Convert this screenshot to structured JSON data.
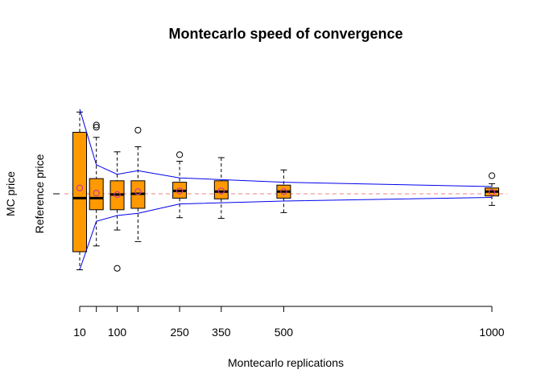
{
  "chart_data": {
    "type": "boxplot",
    "title": "Montecarlo speed of convergence",
    "xlabel": "Montecarlo replications",
    "ylabel_outer": "MC price",
    "ylabel_inner": "Reference price",
    "x_tick_labels": [
      "10",
      "100",
      "250",
      "350",
      "500",
      "1000"
    ],
    "reference_value": 0,
    "ylim": [
      -1.0,
      1.1
    ],
    "xlim": [
      0,
      1020
    ],
    "groups": [
      {
        "n": 10,
        "whisker_low": -1.05,
        "q1": -0.8,
        "median": -0.06,
        "q3": 0.85,
        "whisker_high": 1.13,
        "mean": 0.08,
        "outliers": []
      },
      {
        "n": 50,
        "whisker_low": -0.72,
        "q1": -0.22,
        "median": -0.06,
        "q3": 0.21,
        "whisker_high": 0.78,
        "mean": 0.01,
        "outliers": [
          0.92,
          0.95
        ]
      },
      {
        "n": 100,
        "whisker_low": -0.5,
        "q1": -0.22,
        "median": -0.01,
        "q3": 0.18,
        "whisker_high": 0.58,
        "mean": -0.01,
        "outliers": [
          -1.03
        ]
      },
      {
        "n": 150,
        "whisker_low": -0.66,
        "q1": -0.2,
        "median": 0.0,
        "q3": 0.18,
        "whisker_high": 0.65,
        "mean": 0.03,
        "outliers": [
          0.88
        ]
      },
      {
        "n": 250,
        "whisker_low": -0.33,
        "q1": -0.06,
        "median": 0.04,
        "q3": 0.16,
        "whisker_high": 0.45,
        "mean": 0.04,
        "outliers": [
          0.54
        ]
      },
      {
        "n": 350,
        "whisker_low": -0.34,
        "q1": -0.07,
        "median": 0.03,
        "q3": 0.18,
        "whisker_high": 0.5,
        "mean": 0.04,
        "outliers": []
      },
      {
        "n": 500,
        "whisker_low": -0.26,
        "q1": -0.06,
        "median": 0.03,
        "q3": 0.12,
        "whisker_high": 0.33,
        "mean": 0.03,
        "outliers": []
      },
      {
        "n": 1000,
        "whisker_low": -0.16,
        "q1": -0.03,
        "median": 0.03,
        "q3": 0.08,
        "whisker_high": 0.14,
        "mean": 0.02,
        "outliers": [
          0.25
        ]
      }
    ],
    "upper_band": [
      {
        "n": 10,
        "y": 1.17
      },
      {
        "n": 50,
        "y": 0.4
      },
      {
        "n": 100,
        "y": 0.27
      },
      {
        "n": 150,
        "y": 0.32
      },
      {
        "n": 250,
        "y": 0.22
      },
      {
        "n": 500,
        "y": 0.16
      },
      {
        "n": 1000,
        "y": 0.1
      }
    ],
    "lower_band": [
      {
        "n": 10,
        "y": -1.05
      },
      {
        "n": 50,
        "y": -0.38
      },
      {
        "n": 100,
        "y": -0.3
      },
      {
        "n": 150,
        "y": -0.27
      },
      {
        "n": 250,
        "y": -0.14
      },
      {
        "n": 500,
        "y": -0.1
      },
      {
        "n": 1000,
        "y": -0.05
      }
    ],
    "colors": {
      "box_fill": "#ff9900",
      "median": "#000000",
      "mean_marker": "#c83c9a",
      "band": "#0000ee",
      "reference_line": "#f08080",
      "axis": "#000000"
    },
    "grid": false
  }
}
